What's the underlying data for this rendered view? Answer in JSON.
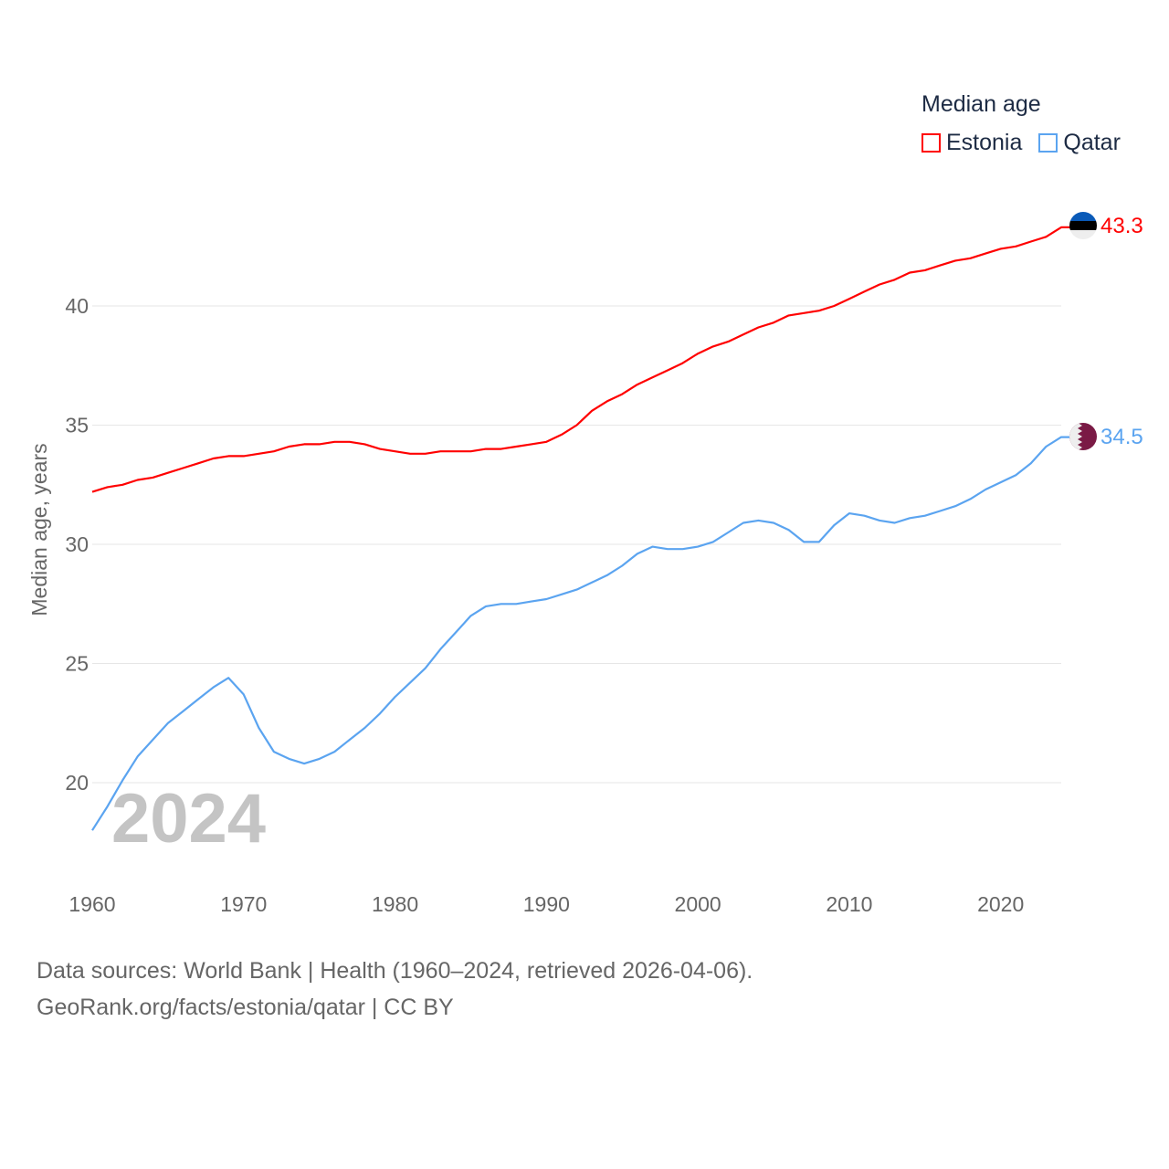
{
  "chart_data": {
    "type": "line",
    "ylabel": "Median age, years",
    "xlabel": "",
    "year_label": "2024",
    "xlim": [
      1960,
      2024
    ],
    "ylim": [
      18,
      45
    ],
    "x_ticks": [
      "1960",
      "1970",
      "1980",
      "1990",
      "2000",
      "2010",
      "2020"
    ],
    "y_ticks": [
      "20",
      "25",
      "30",
      "35",
      "40"
    ],
    "grid": true,
    "legend": {
      "title": "Median age",
      "placement": "top-right"
    },
    "x": [
      1960,
      1961,
      1962,
      1963,
      1964,
      1965,
      1966,
      1967,
      1968,
      1969,
      1970,
      1971,
      1972,
      1973,
      1974,
      1975,
      1976,
      1977,
      1978,
      1979,
      1980,
      1981,
      1982,
      1983,
      1984,
      1985,
      1986,
      1987,
      1988,
      1989,
      1990,
      1991,
      1992,
      1993,
      1994,
      1995,
      1996,
      1997,
      1998,
      1999,
      2000,
      2001,
      2002,
      2003,
      2004,
      2005,
      2006,
      2007,
      2008,
      2009,
      2010,
      2011,
      2012,
      2013,
      2014,
      2015,
      2016,
      2017,
      2018,
      2019,
      2020,
      2021,
      2022,
      2023,
      2024
    ],
    "series": [
      {
        "name": "Estonia",
        "color": "#ff0000",
        "end_label": "43.3",
        "flag": "estonia-flag",
        "values": [
          32.2,
          32.4,
          32.5,
          32.7,
          32.8,
          33.0,
          33.2,
          33.4,
          33.6,
          33.7,
          33.7,
          33.8,
          33.9,
          34.1,
          34.2,
          34.2,
          34.3,
          34.3,
          34.2,
          34.0,
          33.9,
          33.8,
          33.8,
          33.9,
          33.9,
          33.9,
          34.0,
          34.0,
          34.1,
          34.2,
          34.3,
          34.6,
          35.0,
          35.6,
          36.0,
          36.3,
          36.7,
          37.0,
          37.3,
          37.6,
          38.0,
          38.3,
          38.5,
          38.8,
          39.1,
          39.3,
          39.6,
          39.7,
          39.8,
          40.0,
          40.3,
          40.6,
          40.9,
          41.1,
          41.4,
          41.5,
          41.7,
          41.9,
          42.0,
          42.2,
          42.4,
          42.5,
          42.7,
          42.9,
          43.3
        ]
      },
      {
        "name": "Qatar",
        "color": "#5ba4f0",
        "end_label": "34.5",
        "flag": "qatar-flag",
        "values": [
          18.0,
          19.0,
          20.1,
          21.1,
          21.8,
          22.5,
          23.0,
          23.5,
          24.0,
          24.4,
          23.7,
          22.3,
          21.3,
          21.0,
          20.8,
          21.0,
          21.3,
          21.8,
          22.3,
          22.9,
          23.6,
          24.2,
          24.8,
          25.6,
          26.3,
          27.0,
          27.4,
          27.5,
          27.5,
          27.6,
          27.7,
          27.9,
          28.1,
          28.4,
          28.7,
          29.1,
          29.6,
          29.9,
          29.8,
          29.8,
          29.9,
          30.1,
          30.5,
          30.9,
          31.0,
          30.9,
          30.6,
          30.1,
          30.1,
          30.8,
          31.3,
          31.2,
          31.0,
          30.9,
          31.1,
          31.2,
          31.4,
          31.6,
          31.9,
          32.3,
          32.6,
          32.9,
          33.4,
          34.1,
          34.5
        ]
      }
    ]
  },
  "footer": {
    "line1": "Data sources: World Bank | Health (1960–2024, retrieved 2026-04-06).",
    "line2": "GeoRank.org/facts/estonia/qatar | CC BY"
  }
}
